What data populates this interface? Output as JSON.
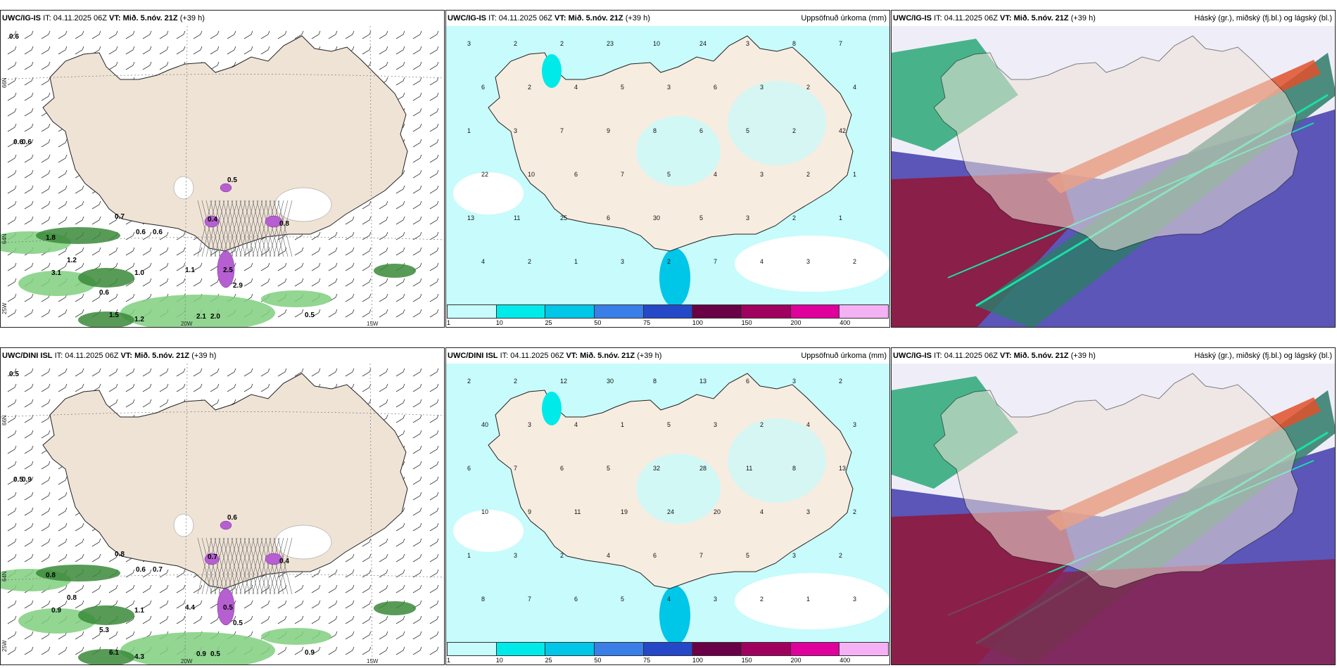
{
  "common": {
    "issue": "IT: 04.11.2025 06Z",
    "valid_prefix": "VT:",
    "valid_bold": "Mið. 5.nóv. 21Z",
    "lead": "(+39 h)"
  },
  "models": {
    "top": "UWC/IG-IS",
    "bottom": "UWC/DINI ISL"
  },
  "titles": {
    "precip": "Uppsöfnuð úrkoma (mm)",
    "cloud": "Háský (gr.), miðský (fj.bl.) og lágský (bl.)",
    "cloud_top": ""
  },
  "legend": {
    "ticks": [
      "1",
      "10",
      "25",
      "50",
      "75",
      "100",
      "150",
      "200",
      "400"
    ],
    "colors": [
      "#c8fbfb",
      "#00eaea",
      "#00c6e8",
      "#3a7ee8",
      "#2448c8",
      "#6a0046",
      "#a0005e",
      "#e0009c",
      "#f4b2f4"
    ]
  },
  "axis_labels": {
    "lat66": "66N",
    "lat64": "64N",
    "lon25": "25W",
    "lon20": "20W",
    "lon15": "15W"
  },
  "panels": {
    "top_wind_values": [
      {
        "t": "0.6"
      },
      {
        "t": "0.6"
      },
      {
        "t": "0.6"
      },
      {
        "t": "1.8"
      },
      {
        "t": "0.7"
      },
      {
        "t": "0.6"
      },
      {
        "t": "0.6"
      },
      {
        "t": "3.1"
      },
      {
        "t": "1.2"
      },
      {
        "t": "1.0"
      },
      {
        "t": "1.1"
      },
      {
        "t": "0.6"
      },
      {
        "t": "1.5"
      },
      {
        "t": "1.2"
      },
      {
        "t": "2.1"
      },
      {
        "t": "2.0"
      },
      {
        "t": "0.5"
      },
      {
        "t": "2.5"
      },
      {
        "t": "2.9"
      },
      {
        "t": "0.5"
      },
      {
        "t": "0.4"
      },
      {
        "t": "0.8"
      }
    ],
    "bottom_wind_values": [
      {
        "t": "0.5"
      },
      {
        "t": "0.5"
      },
      {
        "t": "0.9"
      },
      {
        "t": "0.8"
      },
      {
        "t": "0.8"
      },
      {
        "t": "0.6"
      },
      {
        "t": "0.7"
      },
      {
        "t": "0.9"
      },
      {
        "t": "0.8"
      },
      {
        "t": "1.1"
      },
      {
        "t": "4.4"
      },
      {
        "t": "5.3"
      },
      {
        "t": "6.1"
      },
      {
        "t": "4.3"
      },
      {
        "t": "0.9"
      },
      {
        "t": "0.5"
      },
      {
        "t": "0.9"
      },
      {
        "t": "0.5"
      },
      {
        "t": "0.5"
      },
      {
        "t": "0.6"
      },
      {
        "t": "0.7"
      },
      {
        "t": "0.4"
      }
    ],
    "top_precip_values": [
      {
        "t": "3"
      },
      {
        "t": "2"
      },
      {
        "t": "2"
      },
      {
        "t": "23"
      },
      {
        "t": "10"
      },
      {
        "t": "24"
      },
      {
        "t": "3"
      },
      {
        "t": "8"
      },
      {
        "t": "7"
      },
      {
        "t": "6"
      },
      {
        "t": "2"
      },
      {
        "t": "4"
      },
      {
        "t": "5"
      },
      {
        "t": "3"
      },
      {
        "t": "6"
      },
      {
        "t": "3"
      },
      {
        "t": "2"
      },
      {
        "t": "4"
      },
      {
        "t": "1"
      },
      {
        "t": "3"
      },
      {
        "t": "7"
      },
      {
        "t": "9"
      },
      {
        "t": "8"
      },
      {
        "t": "6"
      },
      {
        "t": "5"
      },
      {
        "t": "2"
      },
      {
        "t": "42"
      },
      {
        "t": "22"
      },
      {
        "t": "10"
      },
      {
        "t": "6"
      },
      {
        "t": "7"
      },
      {
        "t": "5"
      },
      {
        "t": "4"
      },
      {
        "t": "3"
      },
      {
        "t": "2"
      },
      {
        "t": "1"
      },
      {
        "t": "13"
      },
      {
        "t": "11"
      },
      {
        "t": "25"
      },
      {
        "t": "6"
      },
      {
        "t": "30"
      },
      {
        "t": "5"
      },
      {
        "t": "3"
      },
      {
        "t": "2"
      },
      {
        "t": "1"
      },
      {
        "t": "4"
      },
      {
        "t": "2"
      },
      {
        "t": "1"
      },
      {
        "t": "3"
      },
      {
        "t": "2"
      },
      {
        "t": "7"
      },
      {
        "t": "4"
      },
      {
        "t": "3"
      },
      {
        "t": "2"
      }
    ],
    "bottom_precip_values": [
      {
        "t": "2"
      },
      {
        "t": "2"
      },
      {
        "t": "12"
      },
      {
        "t": "30"
      },
      {
        "t": "8"
      },
      {
        "t": "13"
      },
      {
        "t": "6"
      },
      {
        "t": "3"
      },
      {
        "t": "2"
      },
      {
        "t": "40"
      },
      {
        "t": "3"
      },
      {
        "t": "4"
      },
      {
        "t": "1"
      },
      {
        "t": "5"
      },
      {
        "t": "3"
      },
      {
        "t": "2"
      },
      {
        "t": "4"
      },
      {
        "t": "3"
      },
      {
        "t": "6"
      },
      {
        "t": "7"
      },
      {
        "t": "6"
      },
      {
        "t": "5"
      },
      {
        "t": "32"
      },
      {
        "t": "28"
      },
      {
        "t": "11"
      },
      {
        "t": "8"
      },
      {
        "t": "13"
      },
      {
        "t": "10"
      },
      {
        "t": "9"
      },
      {
        "t": "11"
      },
      {
        "t": "19"
      },
      {
        "t": "24"
      },
      {
        "t": "20"
      },
      {
        "t": "4"
      },
      {
        "t": "3"
      },
      {
        "t": "2"
      },
      {
        "t": "1"
      },
      {
        "t": "3"
      },
      {
        "t": "2"
      },
      {
        "t": "4"
      },
      {
        "t": "6"
      },
      {
        "t": "7"
      },
      {
        "t": "5"
      },
      {
        "t": "3"
      },
      {
        "t": "2"
      },
      {
        "t": "8"
      },
      {
        "t": "7"
      },
      {
        "t": "6"
      },
      {
        "t": "5"
      },
      {
        "t": "4"
      },
      {
        "t": "3"
      },
      {
        "t": "2"
      },
      {
        "t": "1"
      },
      {
        "t": "3"
      }
    ]
  }
}
